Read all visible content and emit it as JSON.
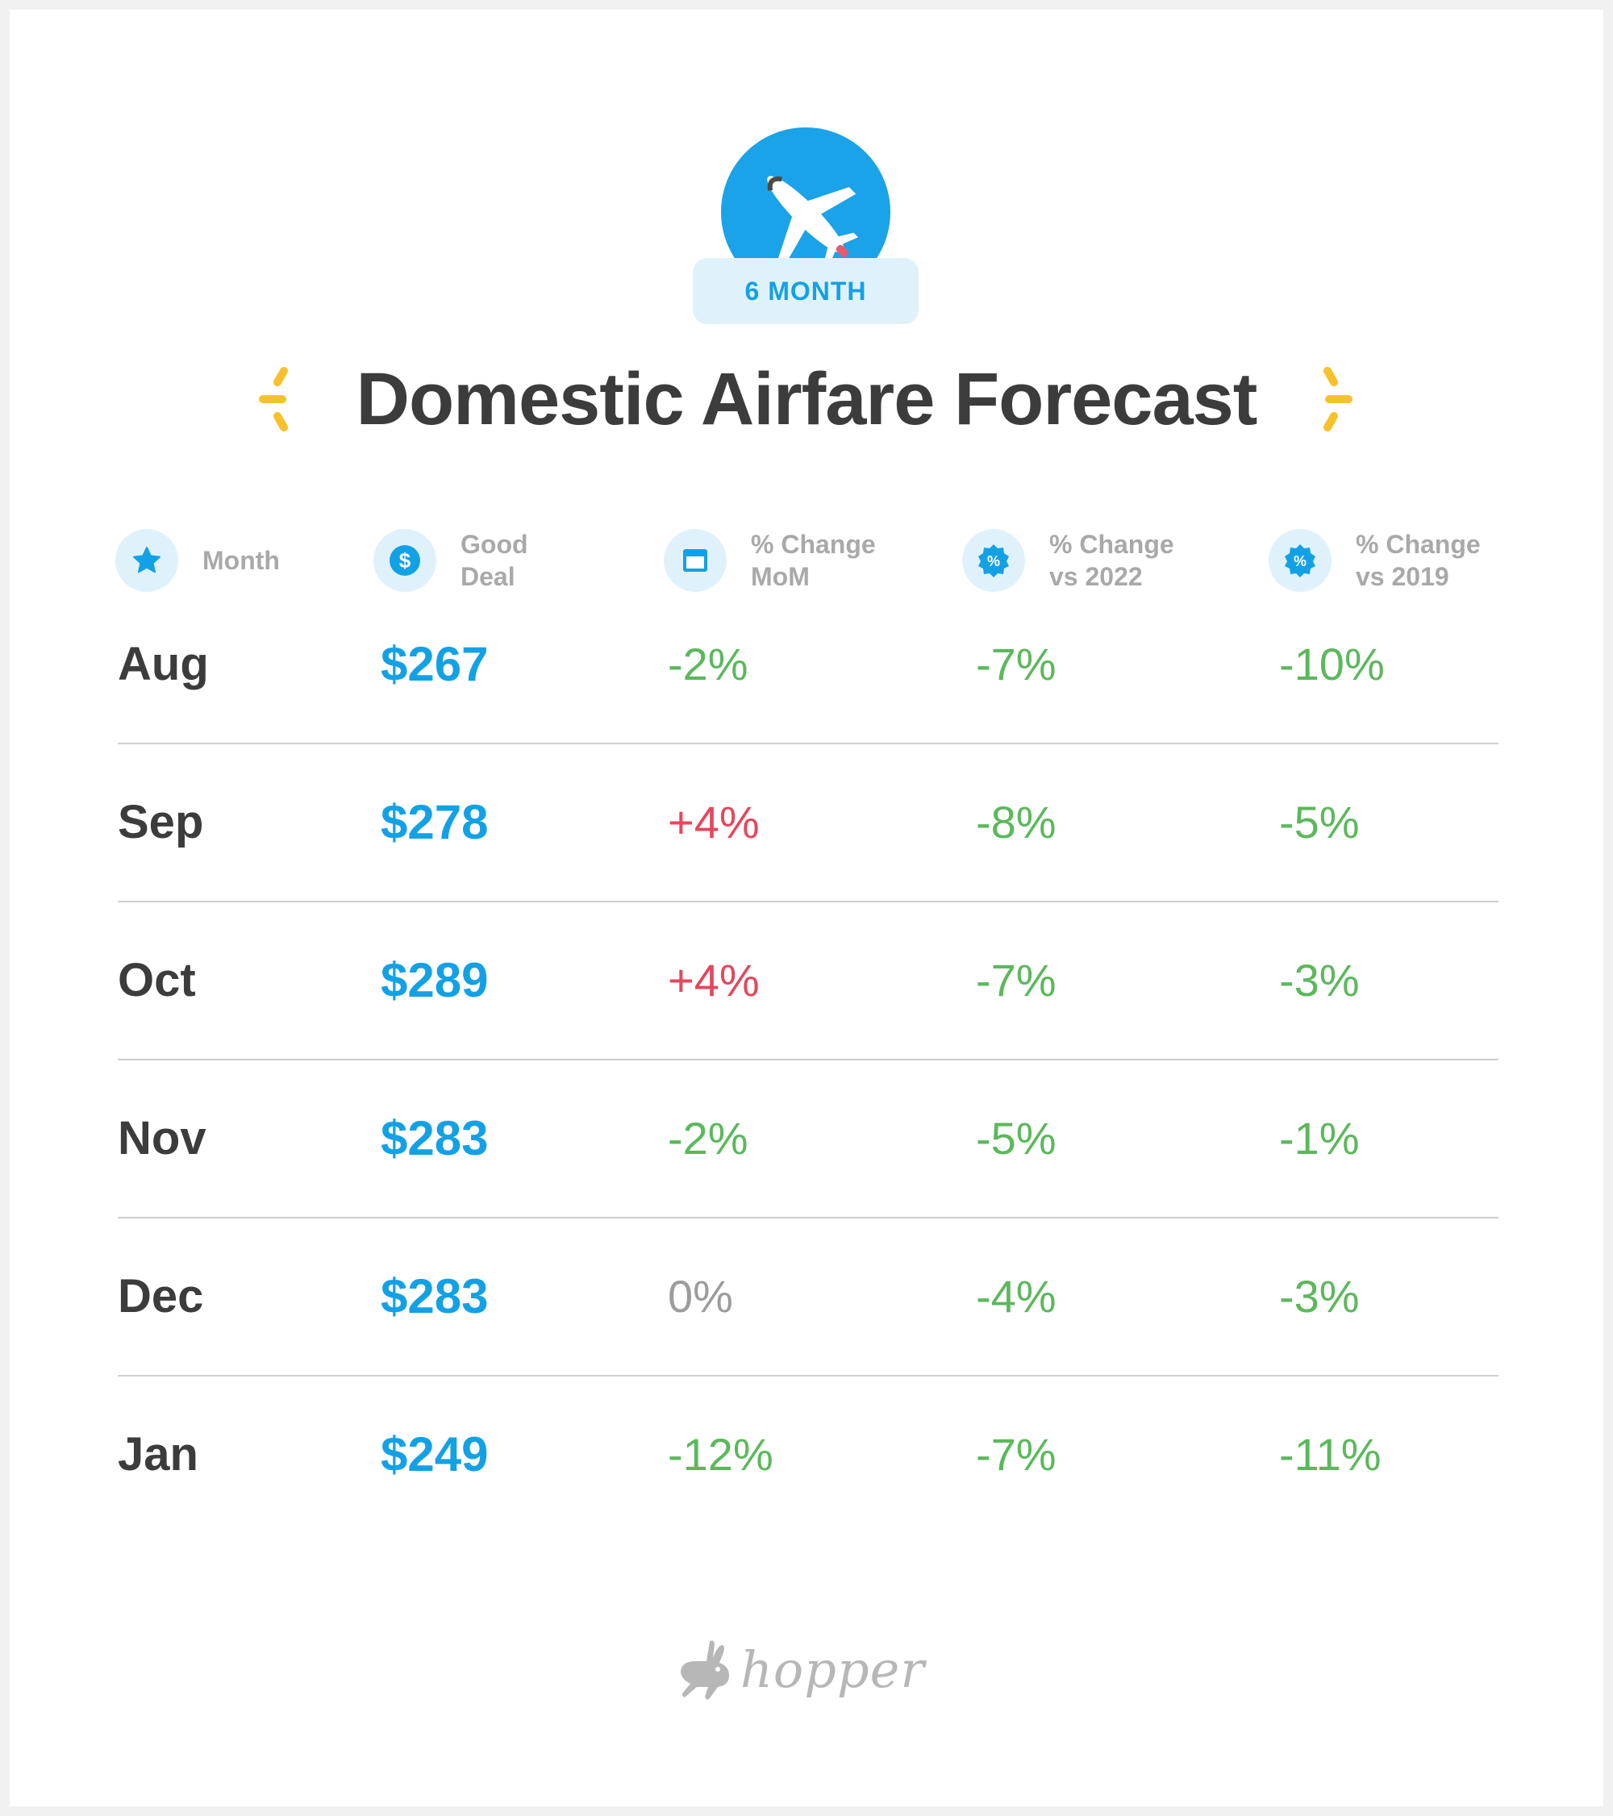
{
  "badge": {
    "label": "6 MONTH",
    "icon": "airplane-icon"
  },
  "title": "Domestic Airfare Forecast",
  "colors": {
    "accent": "#13a1e6",
    "negative": "#5cb85c",
    "positive": "#e5475c",
    "neutral": "#9c9c9c",
    "sparkle": "#f7c12d"
  },
  "columns": [
    {
      "label": "Month",
      "icon": "star-icon"
    },
    {
      "label": "Good\nDeal",
      "icon": "dollar-icon"
    },
    {
      "label": "% Change\nMoM",
      "icon": "calendar-icon"
    },
    {
      "label": "% Change\nvs 2022",
      "icon": "percent-badge-icon"
    },
    {
      "label": "% Change\nvs 2019",
      "icon": "percent-badge-icon"
    }
  ],
  "rows": [
    {
      "month": "Aug",
      "price": "$267",
      "mom": "-2%",
      "vs2022": "-7%",
      "vs2019": "-10%"
    },
    {
      "month": "Sep",
      "price": "$278",
      "mom": "+4%",
      "vs2022": "-8%",
      "vs2019": "-5%"
    },
    {
      "month": "Oct",
      "price": "$289",
      "mom": "+4%",
      "vs2022": "-7%",
      "vs2019": "-3%"
    },
    {
      "month": "Nov",
      "price": "$283",
      "mom": "-2%",
      "vs2022": "-5%",
      "vs2019": "-1%"
    },
    {
      "month": "Dec",
      "price": "$283",
      "mom": "0%",
      "vs2022": "-4%",
      "vs2019": "-3%"
    },
    {
      "month": "Jan",
      "price": "$249",
      "mom": "-12%",
      "vs2022": "-7%",
      "vs2019": "-11%"
    }
  ],
  "footer": {
    "logo_text": "hopper",
    "logo_icon": "rabbit-icon"
  }
}
